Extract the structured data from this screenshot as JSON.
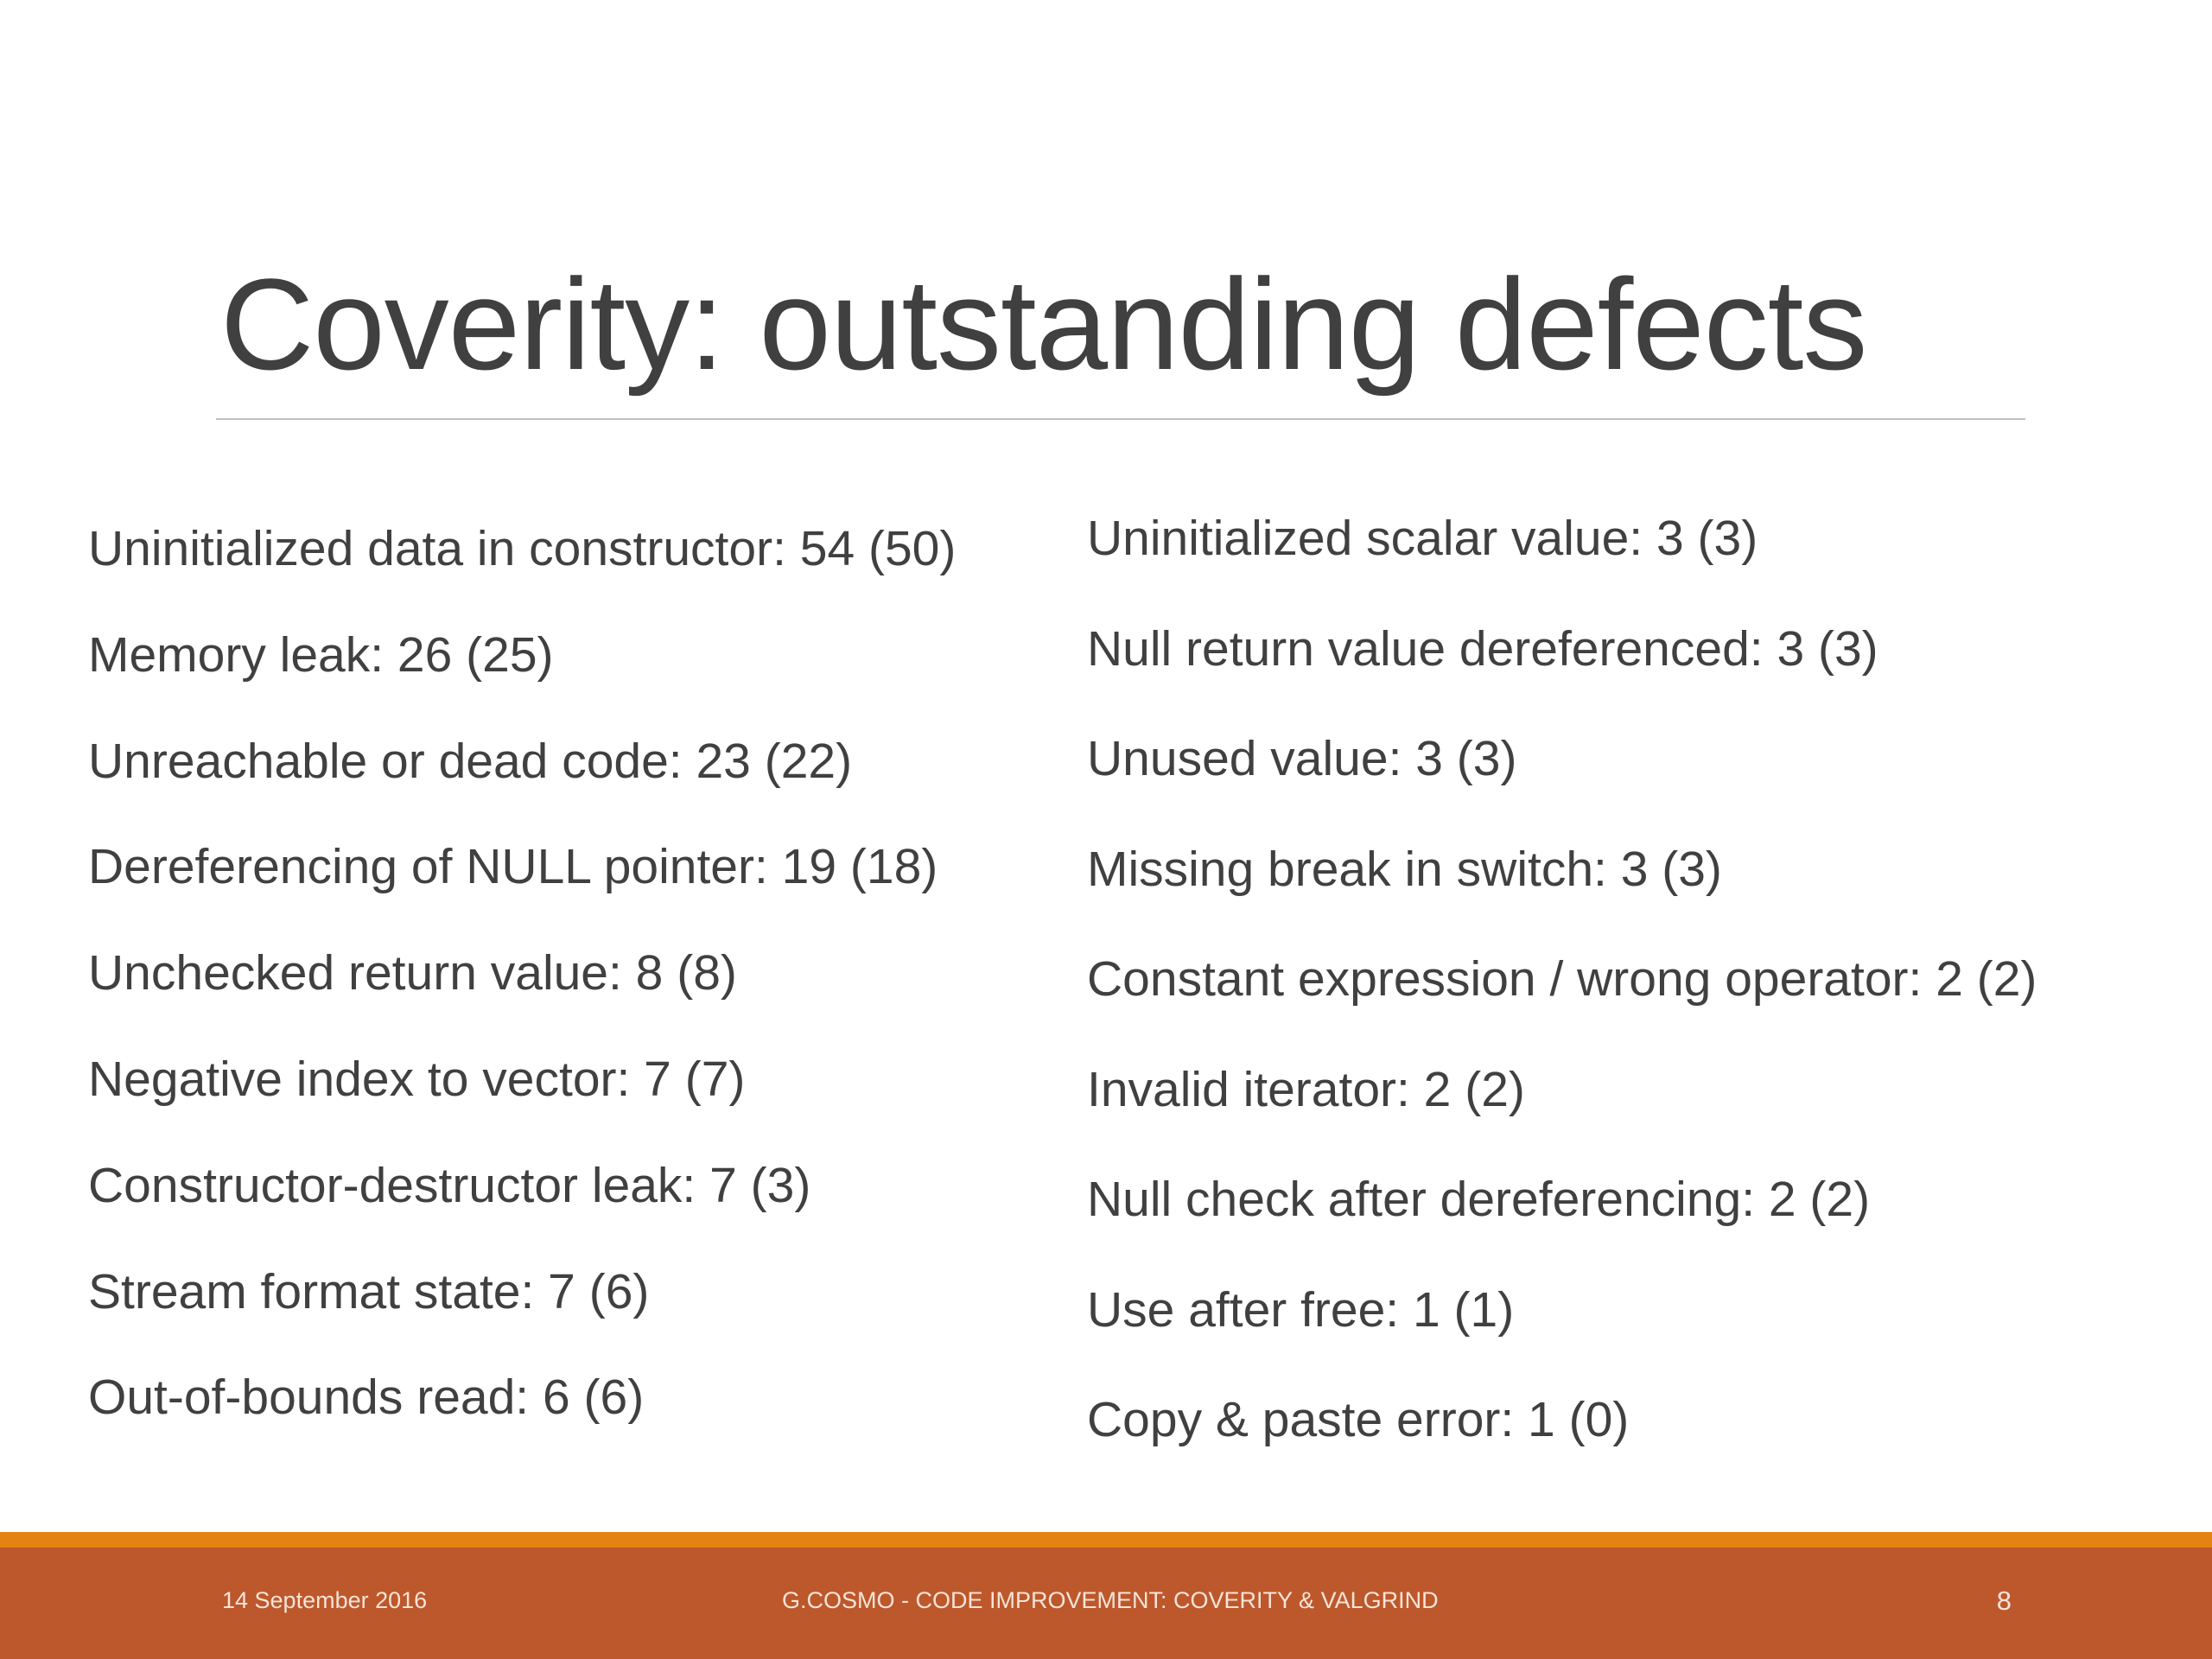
{
  "slide": {
    "title": "Coverity: outstanding defects",
    "left_items": [
      "Uninitialized data in constructor: 54 (50)",
      "Memory leak: 26 (25)",
      "Unreachable or dead code: 23 (22)",
      "Dereferencing of NULL pointer: 19 (18)",
      "Unchecked return value: 8 (8)",
      "Negative index to vector: 7 (7)",
      "Constructor-destructor leak: 7 (3)",
      "Stream format state: 7 (6)",
      "Out-of-bounds read: 6 (6)"
    ],
    "right_items": [
      "Uninitialized scalar value: 3 (3)",
      "Null return value dereferenced: 3 (3)",
      "Unused value: 3 (3)",
      "Missing break in switch: 3 (3)",
      "Constant expression / wrong operator: 2 (2)",
      "Invalid iterator: 2 (2)",
      "Null check after dereferencing: 2 (2)",
      "Use after free: 1 (1)",
      "Copy & paste error: 1 (0)"
    ]
  },
  "footer": {
    "date": "14 September 2016",
    "center_text": "G.COSMO - CODE IMPROVEMENT: COVERITY & VALGRIND",
    "page_number": "8"
  },
  "colors": {
    "footer_bar": "#bd582c",
    "footer_stripe": "#e48312",
    "text": "#404040"
  }
}
